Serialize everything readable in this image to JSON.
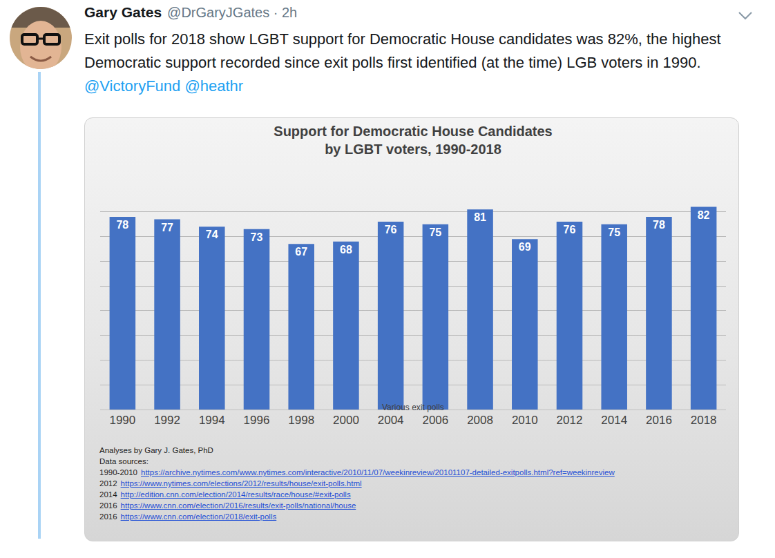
{
  "tweet": {
    "name": "Gary Gates",
    "meta": "@DrGaryJGates · 2h",
    "text": "Exit polls for 2018 show LGBT support for Democratic House candidates was 82%, the highest Democratic support recorded since exit polls first identified (at the time) LGB voters in 1990.",
    "mentions": [
      "@VictoryFund",
      "@heathr"
    ]
  },
  "chart_data": {
    "type": "bar",
    "title": "Support for Democratic House Candidates\nby LGBT voters, 1990-2018",
    "subtitle": "Various exit polls",
    "categories": [
      "1990",
      "1992",
      "1994",
      "1996",
      "1998",
      "2000",
      "2004",
      "2006",
      "2008",
      "2010",
      "2012",
      "2014",
      "2016",
      "2018"
    ],
    "values": [
      78,
      77,
      74,
      73,
      67,
      68,
      76,
      75,
      81,
      69,
      76,
      75,
      78,
      82
    ],
    "color": "#4472c4",
    "ylim": [
      0,
      90
    ],
    "yticks": [
      0,
      10,
      20,
      30,
      40,
      50,
      60,
      70,
      80,
      90
    ],
    "grid": true,
    "data_labels": true,
    "tick_labels": "x"
  },
  "chart_notes": {
    "credit": "Analyses by Gary J. Gates, PhD",
    "sources_heading": "Data sources:",
    "sources": [
      {
        "years": "1990-2010",
        "url": "https://archive.nytimes.com/www.nytimes.com/interactive/2010/11/07/weekinreview/20101107-detailed-exitpolls.html?ref=weekinreview"
      },
      {
        "years": "2012",
        "url": "https://www.nytimes.com/elections/2012/results/house/exit-polls.html"
      },
      {
        "years": "2014",
        "url": "http://edition.cnn.com/election/2014/results/race/house/#exit-polls"
      },
      {
        "years": "2016",
        "url": "https://www.cnn.com/election/2016/results/exit-polls/national/house"
      },
      {
        "years": "2016",
        "url": "https://www.cnn.com/election/2018/exit-polls"
      }
    ]
  }
}
